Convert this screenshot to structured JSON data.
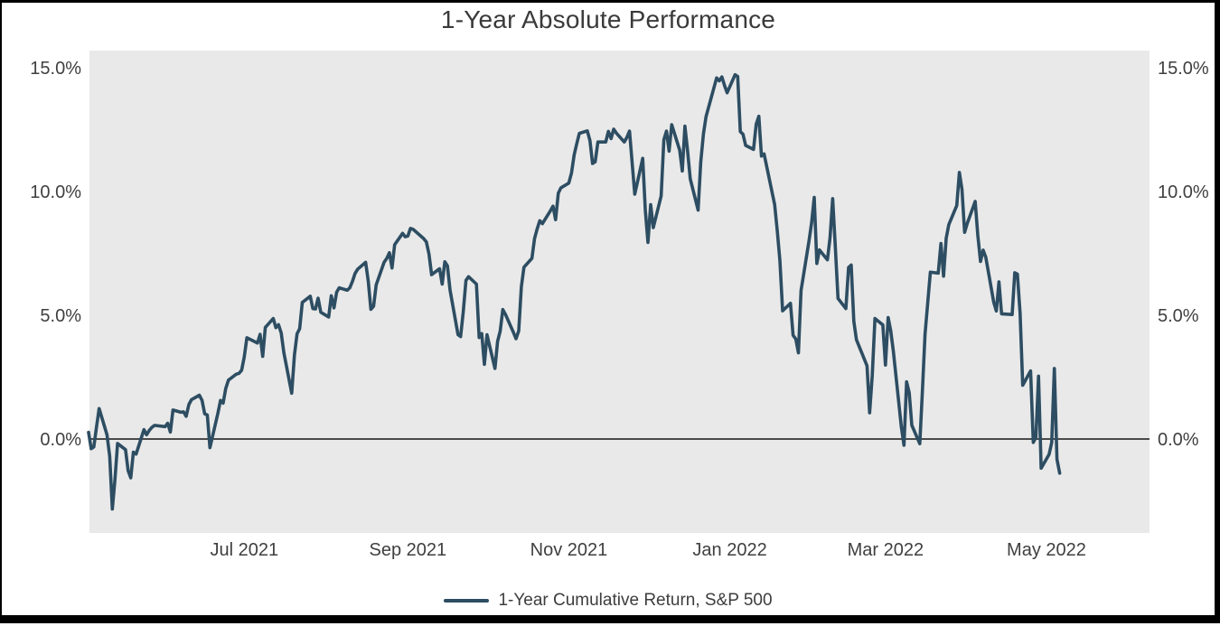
{
  "page": {
    "title": "1-Year Absolute Performance"
  },
  "legend": {
    "label": "1-Year Cumulative Return, S&P 500"
  },
  "colors": {
    "series": "#2d4d62",
    "plot_background": "#e9e9e9",
    "zero_line": "#4a4a4a",
    "tick_text": "#3f3f3f",
    "title_text": "#3a3a3a",
    "frame": "#000000",
    "page_background": "#ffffff"
  },
  "chart_data": {
    "type": "line",
    "title": "1-Year Absolute Performance",
    "series_name": "1-Year Cumulative Return, S&P 500",
    "x_description": "trading days, May 2021 through early May 2022 (x stored as day offset from start of series)",
    "y_description": "cumulative return, percent",
    "ylim": [
      -3.8,
      15.7
    ],
    "xlim_days": [
      0,
      402
    ],
    "grid": false,
    "zero_line": true,
    "y_axis_sides": [
      "left",
      "right"
    ],
    "legend_position": "bottom-center",
    "y_ticks": [
      {
        "label": "0.0%",
        "value": 0
      },
      {
        "label": "5.0%",
        "value": 5
      },
      {
        "label": "10.0%",
        "value": 10
      },
      {
        "label": "15.0%",
        "value": 15
      }
    ],
    "x_ticks": [
      {
        "label": "Jul 2021",
        "day": 59
      },
      {
        "label": "Sep 2021",
        "day": 121
      },
      {
        "label": "Nov 2021",
        "day": 182
      },
      {
        "label": "Jan 2022",
        "day": 243
      },
      {
        "label": "Mar 2022",
        "day": 302
      },
      {
        "label": "May 2022",
        "day": 363
      }
    ],
    "points": [
      [
        0,
        0.27
      ],
      [
        1,
        -0.39
      ],
      [
        2,
        -0.32
      ],
      [
        3,
        0.49
      ],
      [
        4,
        1.23
      ],
      [
        7,
        0.17
      ],
      [
        8,
        -0.7
      ],
      [
        9,
        -2.83
      ],
      [
        10,
        -1.64
      ],
      [
        11,
        -0.18
      ],
      [
        14,
        -0.43
      ],
      [
        15,
        -1.28
      ],
      [
        16,
        -1.57
      ],
      [
        17,
        -0.53
      ],
      [
        18,
        -0.61
      ],
      [
        21,
        0.38
      ],
      [
        22,
        0.17
      ],
      [
        23,
        0.35
      ],
      [
        24,
        0.47
      ],
      [
        25,
        0.55
      ],
      [
        29,
        0.5
      ],
      [
        30,
        0.64
      ],
      [
        31,
        0.28
      ],
      [
        32,
        1.17
      ],
      [
        35,
        1.08
      ],
      [
        36,
        1.1
      ],
      [
        37,
        0.92
      ],
      [
        38,
        1.39
      ],
      [
        39,
        1.59
      ],
      [
        42,
        1.77
      ],
      [
        43,
        1.56
      ],
      [
        44,
        1.02
      ],
      [
        45,
        0.97
      ],
      [
        46,
        -0.35
      ],
      [
        49,
        1.04
      ],
      [
        50,
        1.56
      ],
      [
        51,
        1.45
      ],
      [
        52,
        2.04
      ],
      [
        53,
        2.38
      ],
      [
        56,
        2.62
      ],
      [
        57,
        2.65
      ],
      [
        58,
        2.78
      ],
      [
        59,
        3.32
      ],
      [
        60,
        4.09
      ],
      [
        64,
        3.88
      ],
      [
        65,
        4.23
      ],
      [
        66,
        3.34
      ],
      [
        67,
        4.51
      ],
      [
        70,
        4.87
      ],
      [
        71,
        4.5
      ],
      [
        72,
        4.62
      ],
      [
        73,
        4.28
      ],
      [
        74,
        3.49
      ],
      [
        77,
        1.85
      ],
      [
        78,
        3.39
      ],
      [
        79,
        4.25
      ],
      [
        80,
        4.46
      ],
      [
        81,
        5.52
      ],
      [
        84,
        5.77
      ],
      [
        85,
        5.27
      ],
      [
        86,
        5.25
      ],
      [
        87,
        5.69
      ],
      [
        88,
        5.12
      ],
      [
        91,
        4.93
      ],
      [
        92,
        5.79
      ],
      [
        93,
        5.3
      ],
      [
        94,
        5.93
      ],
      [
        95,
        6.11
      ],
      [
        98,
        6.01
      ],
      [
        99,
        6.11
      ],
      [
        100,
        6.37
      ],
      [
        101,
        6.69
      ],
      [
        102,
        6.86
      ],
      [
        105,
        7.14
      ],
      [
        106,
        6.38
      ],
      [
        107,
        5.24
      ],
      [
        108,
        5.37
      ],
      [
        109,
        6.23
      ],
      [
        112,
        7.14
      ],
      [
        113,
        7.3
      ],
      [
        114,
        7.53
      ],
      [
        115,
        6.91
      ],
      [
        116,
        7.85
      ],
      [
        119,
        8.31
      ],
      [
        120,
        8.17
      ],
      [
        121,
        8.2
      ],
      [
        122,
        8.51
      ],
      [
        123,
        8.47
      ],
      [
        127,
        8.1
      ],
      [
        128,
        7.96
      ],
      [
        129,
        7.47
      ],
      [
        130,
        6.64
      ],
      [
        133,
        6.88
      ],
      [
        134,
        6.26
      ],
      [
        135,
        7.16
      ],
      [
        136,
        7
      ],
      [
        137,
        6.02
      ],
      [
        140,
        4.22
      ],
      [
        141,
        4.14
      ],
      [
        142,
        5.13
      ],
      [
        143,
        6.41
      ],
      [
        144,
        6.56
      ],
      [
        147,
        6.26
      ],
      [
        148,
        4.1
      ],
      [
        149,
        4.26
      ],
      [
        150,
        3.02
      ],
      [
        151,
        4.21
      ],
      [
        154,
        2.85
      ],
      [
        155,
        3.94
      ],
      [
        156,
        4.36
      ],
      [
        157,
        5.23
      ],
      [
        158,
        5.03
      ],
      [
        161,
        4.31
      ],
      [
        162,
        4.05
      ],
      [
        163,
        4.37
      ],
      [
        164,
        6.15
      ],
      [
        165,
        6.94
      ],
      [
        168,
        7.3
      ],
      [
        169,
        8.1
      ],
      [
        170,
        8.49
      ],
      [
        171,
        8.82
      ],
      [
        172,
        8.7
      ],
      [
        175,
        9.22
      ],
      [
        176,
        9.41
      ],
      [
        177,
        8.86
      ],
      [
        178,
        9.93
      ],
      [
        179,
        10.15
      ],
      [
        182,
        10.34
      ],
      [
        183,
        10.75
      ],
      [
        184,
        11.47
      ],
      [
        185,
        11.93
      ],
      [
        186,
        12.35
      ],
      [
        189,
        12.45
      ],
      [
        190,
        12.06
      ],
      [
        191,
        11.13
      ],
      [
        192,
        11.2
      ],
      [
        193,
        12
      ],
      [
        196,
        12
      ],
      [
        197,
        12.43
      ],
      [
        198,
        12.14
      ],
      [
        199,
        12.52
      ],
      [
        200,
        12.36
      ],
      [
        203,
        12
      ],
      [
        204,
        12.19
      ],
      [
        205,
        12.44
      ],
      [
        207,
        9.89
      ],
      [
        210,
        11.34
      ],
      [
        211,
        9.23
      ],
      [
        212,
        7.94
      ],
      [
        213,
        9.47
      ],
      [
        214,
        8.54
      ],
      [
        217,
        9.82
      ],
      [
        218,
        12.09
      ],
      [
        219,
        12.44
      ],
      [
        220,
        11.63
      ],
      [
        221,
        12.7
      ],
      [
        224,
        11.67
      ],
      [
        225,
        10.83
      ],
      [
        226,
        12.64
      ],
      [
        227,
        11.66
      ],
      [
        228,
        10.51
      ],
      [
        231,
        9.25
      ],
      [
        232,
        11.19
      ],
      [
        233,
        12.33
      ],
      [
        234,
        13.03
      ],
      [
        238,
        14.59
      ],
      [
        239,
        14.47
      ],
      [
        240,
        14.63
      ],
      [
        241,
        14.29
      ],
      [
        242,
        13.99
      ],
      [
        245,
        14.72
      ],
      [
        246,
        14.65
      ],
      [
        247,
        12.42
      ],
      [
        248,
        12.31
      ],
      [
        249,
        11.86
      ],
      [
        252,
        11.7
      ],
      [
        253,
        12.72
      ],
      [
        254,
        13.04
      ],
      [
        255,
        11.43
      ],
      [
        256,
        11.52
      ],
      [
        260,
        9.47
      ],
      [
        261,
        8.41
      ],
      [
        262,
        7.21
      ],
      [
        263,
        5.18
      ],
      [
        266,
        5.48
      ],
      [
        267,
        4.19
      ],
      [
        268,
        4.04
      ],
      [
        269,
        3.48
      ],
      [
        270,
        6
      ],
      [
        273,
        8
      ],
      [
        274,
        8.74
      ],
      [
        275,
        9.76
      ],
      [
        276,
        7.09
      ],
      [
        277,
        7.64
      ],
      [
        280,
        7.24
      ],
      [
        281,
        8.14
      ],
      [
        282,
        9.71
      ],
      [
        283,
        7.72
      ],
      [
        284,
        5.68
      ],
      [
        287,
        5.27
      ],
      [
        288,
        6.93
      ],
      [
        289,
        7.03
      ],
      [
        290,
        4.76
      ],
      [
        291,
        4.01
      ],
      [
        295,
        2.96
      ],
      [
        296,
        1.06
      ],
      [
        297,
        2.57
      ],
      [
        298,
        4.87
      ],
      [
        301,
        4.61
      ],
      [
        302,
        2.99
      ],
      [
        303,
        4.91
      ],
      [
        304,
        4.36
      ],
      [
        305,
        3.53
      ],
      [
        308,
        0.48
      ],
      [
        309,
        -0.25
      ],
      [
        310,
        2.31
      ],
      [
        311,
        1.87
      ],
      [
        312,
        0.55
      ],
      [
        315,
        -0.19
      ],
      [
        316,
        1.94
      ],
      [
        317,
        4.23
      ],
      [
        318,
        5.51
      ],
      [
        319,
        6.74
      ],
      [
        322,
        6.7
      ],
      [
        323,
        7.9
      ],
      [
        324,
        6.58
      ],
      [
        325,
        8.11
      ],
      [
        326,
        8.66
      ],
      [
        329,
        9.43
      ],
      [
        330,
        10.77
      ],
      [
        331,
        10.08
      ],
      [
        332,
        8.35
      ],
      [
        333,
        8.72
      ],
      [
        336,
        9.6
      ],
      [
        337,
        8.23
      ],
      [
        338,
        7.17
      ],
      [
        339,
        7.63
      ],
      [
        340,
        7.35
      ],
      [
        343,
        5.53
      ],
      [
        344,
        5.17
      ],
      [
        345,
        6.35
      ],
      [
        346,
        5.06
      ],
      [
        350,
        5.03
      ],
      [
        351,
        6.72
      ],
      [
        352,
        6.66
      ],
      [
        353,
        5.08
      ],
      [
        354,
        2.17
      ],
      [
        357,
        2.75
      ],
      [
        358,
        -0.14
      ],
      [
        359,
        0.07
      ],
      [
        360,
        2.54
      ],
      [
        361,
        -1.18
      ],
      [
        364,
        -0.62
      ],
      [
        365,
        -0.14
      ],
      [
        366,
        2.85
      ],
      [
        367,
        -0.82
      ],
      [
        368,
        -1.38
      ]
    ]
  }
}
